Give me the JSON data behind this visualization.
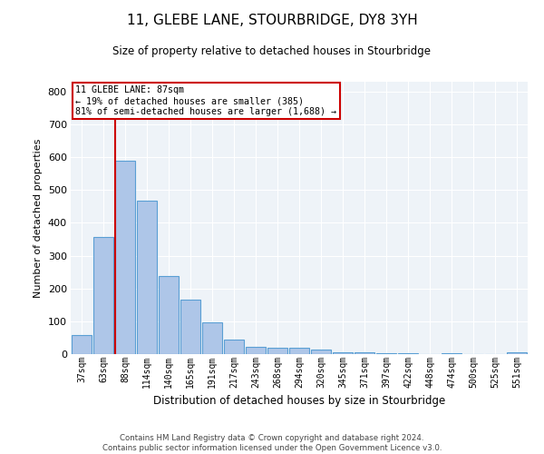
{
  "title": "11, GLEBE LANE, STOURBRIDGE, DY8 3YH",
  "subtitle": "Size of property relative to detached houses in Stourbridge",
  "xlabel": "Distribution of detached houses by size in Stourbridge",
  "ylabel": "Number of detached properties",
  "bar_color": "#aec6e8",
  "bar_edge_color": "#5a9fd4",
  "background_color": "#eef3f8",
  "grid_color": "#ffffff",
  "annotation_box_color": "#cc0000",
  "annotation_line_color": "#cc0000",
  "categories": [
    "37sqm",
    "63sqm",
    "88sqm",
    "114sqm",
    "140sqm",
    "165sqm",
    "191sqm",
    "217sqm",
    "243sqm",
    "268sqm",
    "294sqm",
    "320sqm",
    "345sqm",
    "371sqm",
    "397sqm",
    "422sqm",
    "448sqm",
    "474sqm",
    "500sqm",
    "525sqm",
    "551sqm"
  ],
  "values": [
    57,
    357,
    590,
    468,
    237,
    165,
    97,
    45,
    22,
    20,
    20,
    14,
    6,
    5,
    4,
    4,
    1,
    2,
    0,
    1,
    6
  ],
  "ylim": [
    0,
    830
  ],
  "yticks": [
    0,
    100,
    200,
    300,
    400,
    500,
    600,
    700,
    800
  ],
  "annotation_line_index": 2,
  "annotation_text_line1": "11 GLEBE LANE: 87sqm",
  "annotation_text_line2": "← 19% of detached houses are smaller (385)",
  "annotation_text_line3": "81% of semi-detached houses are larger (1,688) →",
  "footer1": "Contains HM Land Registry data © Crown copyright and database right 2024.",
  "footer2": "Contains public sector information licensed under the Open Government Licence v3.0."
}
